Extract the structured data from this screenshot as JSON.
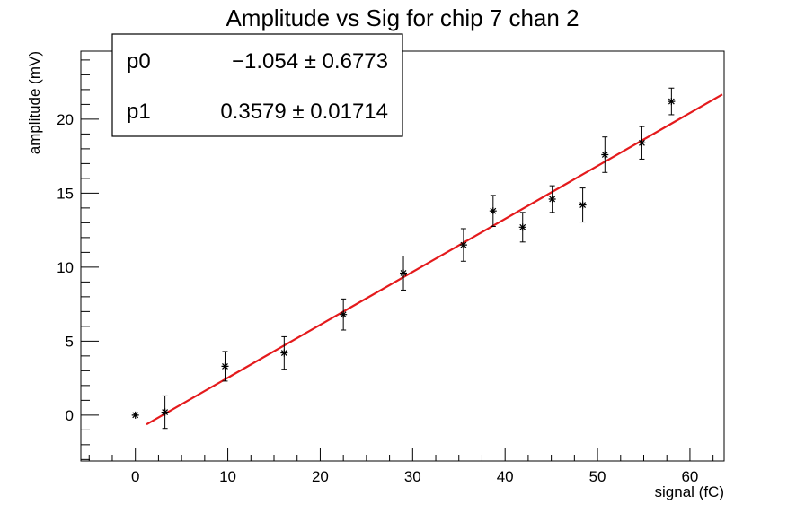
{
  "chart_data": {
    "type": "scatter",
    "title": "Amplitude vs Sig for chip 7 chan 2",
    "xlabel": "signal (fC)",
    "ylabel": "amplitude (mV)",
    "xlim": [
      -5.9,
      63.7
    ],
    "ylim": [
      -3.1,
      24.6
    ],
    "x_ticks": [
      0,
      10,
      20,
      30,
      40,
      50,
      60
    ],
    "y_ticks": [
      0,
      5,
      10,
      15,
      20
    ],
    "grid": false,
    "marker": "asterisk",
    "colors": {
      "points": "#000000",
      "fit": "#e41a1c"
    },
    "points": [
      {
        "x": 0.0,
        "y": 0.0,
        "err": 0.0
      },
      {
        "x": 3.2,
        "y": 0.2,
        "err": 1.1
      },
      {
        "x": 9.7,
        "y": 3.3,
        "err": 1.0
      },
      {
        "x": 16.1,
        "y": 4.2,
        "err": 1.1
      },
      {
        "x": 22.5,
        "y": 6.8,
        "err": 1.05
      },
      {
        "x": 29.0,
        "y": 9.6,
        "err": 1.15
      },
      {
        "x": 35.5,
        "y": 11.5,
        "err": 1.1
      },
      {
        "x": 38.7,
        "y": 13.8,
        "err": 1.05
      },
      {
        "x": 41.9,
        "y": 12.7,
        "err": 1.0
      },
      {
        "x": 45.1,
        "y": 14.6,
        "err": 0.9
      },
      {
        "x": 48.4,
        "y": 14.2,
        "err": 1.15
      },
      {
        "x": 50.8,
        "y": 17.6,
        "err": 1.2
      },
      {
        "x": 54.8,
        "y": 18.4,
        "err": 1.1
      },
      {
        "x": 58.0,
        "y": 21.2,
        "err": 0.9
      }
    ],
    "fit": {
      "x_range": [
        1.2,
        63.5
      ],
      "p0": -1.054,
      "p1": 0.3579
    },
    "stats_box": [
      {
        "name": "p0",
        "value": "−1.054 ± 0.6773"
      },
      {
        "name": "p1",
        "value": "0.3579 ± 0.01714"
      }
    ]
  }
}
